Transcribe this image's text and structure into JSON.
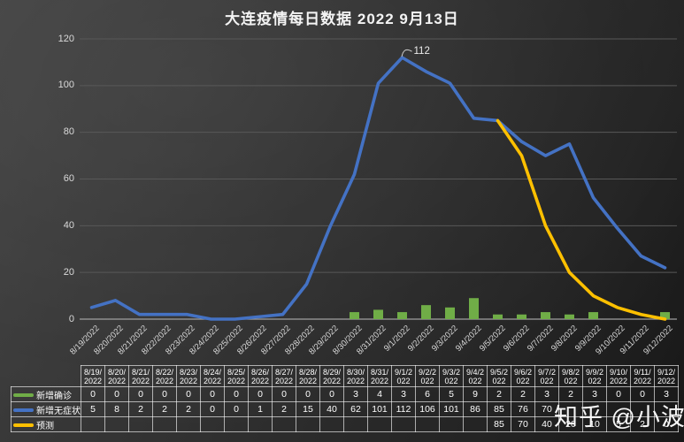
{
  "title": "大连疫情每日数据 2022 9月13日",
  "watermark": "知乎 @小波",
  "chart_data": {
    "type": "combo",
    "categories": [
      "8/19/2022",
      "8/20/2022",
      "8/21/2022",
      "8/22/2022",
      "8/23/2022",
      "8/24/2022",
      "8/25/2022",
      "8/26/2022",
      "8/27/2022",
      "8/28/2022",
      "8/29/2022",
      "8/30/2022",
      "8/31/2022",
      "9/1/2022",
      "9/2/2022",
      "9/3/2022",
      "9/4/2022",
      "9/5/2022",
      "9/6/2022",
      "9/7/2022",
      "9/8/2022",
      "9/9/2022",
      "9/10/2022",
      "9/11/2022",
      "9/12/2022"
    ],
    "series": [
      {
        "name": "新增确诊",
        "type": "bar",
        "color": "#70ad47",
        "values": [
          0,
          0,
          0,
          0,
          0,
          0,
          0,
          0,
          0,
          0,
          0,
          3,
          4,
          3,
          6,
          5,
          9,
          2,
          2,
          3,
          2,
          3,
          0,
          0,
          3
        ]
      },
      {
        "name": "新增无症状",
        "type": "line",
        "color": "#4472c4",
        "values": [
          5,
          8,
          2,
          2,
          2,
          0,
          0,
          1,
          2,
          15,
          40,
          62,
          101,
          112,
          106,
          101,
          86,
          85,
          76,
          70,
          75,
          52,
          39,
          27,
          22
        ]
      },
      {
        "name": "预测",
        "type": "line",
        "color": "#ffc000",
        "values": [
          null,
          null,
          null,
          null,
          null,
          null,
          null,
          null,
          null,
          null,
          null,
          null,
          null,
          null,
          null,
          null,
          null,
          85,
          70,
          40,
          20,
          10,
          5,
          2,
          0
        ]
      }
    ],
    "ylim": [
      0,
      120
    ],
    "yticks": [
      0,
      20,
      40,
      60,
      80,
      100,
      120
    ],
    "grid": true,
    "legend_position": "table-left",
    "annotation": {
      "label": "112",
      "category": "9/1/2022",
      "series": "新增无症状",
      "value": 112
    }
  },
  "table": {
    "rows": [
      {
        "label": "新增确诊",
        "color": "#70ad47",
        "cells": [
          "0",
          "0",
          "0",
          "0",
          "0",
          "0",
          "0",
          "0",
          "0",
          "0",
          "0",
          "3",
          "4",
          "3",
          "6",
          "5",
          "9",
          "2",
          "2",
          "3",
          "2",
          "3",
          "0",
          "0",
          "3"
        ]
      },
      {
        "label": "新增无症状",
        "color": "#4472c4",
        "cells": [
          "5",
          "8",
          "2",
          "2",
          "2",
          "0",
          "0",
          "1",
          "2",
          "15",
          "40",
          "62",
          "101",
          "112",
          "106",
          "101",
          "86",
          "85",
          "76",
          "70",
          "",
          "",
          "",
          "",
          ""
        ]
      },
      {
        "label": "预测",
        "color": "#ffc000",
        "cells": [
          "",
          "",
          "",
          "",
          "",
          "",
          "",
          "",
          "",
          "",
          "",
          "",
          "",
          "",
          "",
          "",
          "",
          "85",
          "70",
          "40",
          "20",
          "10",
          "5",
          "2",
          "0"
        ]
      }
    ]
  }
}
